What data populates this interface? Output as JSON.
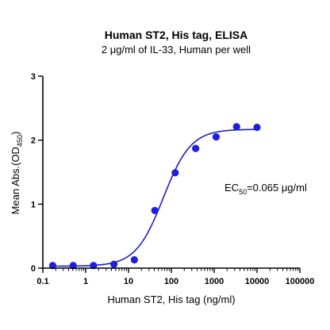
{
  "chart_data": {
    "type": "scatter",
    "title": "Human ST2, His tag, ELISA",
    "subtitle": "2 μg/ml of IL-33, Human per well",
    "xlabel": "Human ST2, His tag (ng/ml)",
    "ylabel_main": "Mean Abs.(OD",
    "ylabel_sub": "450",
    "ylabel_close": ")",
    "x_scale": "log",
    "xlim": [
      0.1,
      100000
    ],
    "ylim": [
      0,
      3
    ],
    "x_ticks": [
      "0.1",
      "1",
      "10",
      "100",
      "1000",
      "10000",
      "100000"
    ],
    "y_ticks": [
      "0",
      "1",
      "2",
      "3"
    ],
    "grid": false,
    "points": [
      {
        "x": 0.17,
        "y": 0.04
      },
      {
        "x": 0.51,
        "y": 0.04
      },
      {
        "x": 1.52,
        "y": 0.04
      },
      {
        "x": 4.57,
        "y": 0.06
      },
      {
        "x": 13.7,
        "y": 0.13
      },
      {
        "x": 41.2,
        "y": 0.9
      },
      {
        "x": 123,
        "y": 1.49
      },
      {
        "x": 370,
        "y": 1.87
      },
      {
        "x": 1111,
        "y": 2.05
      },
      {
        "x": 3333,
        "y": 2.21
      },
      {
        "x": 10000,
        "y": 2.2
      }
    ],
    "fit": {
      "model": "4PL",
      "bottom": 0.03,
      "top": 2.17,
      "ec50": 65,
      "hill": 1.35
    },
    "annotation": {
      "prefix": "EC",
      "sub": "50",
      "value": "=0.065 μg/ml"
    },
    "colors": {
      "points": "#1f1fe0",
      "curve": "#1f1fbf",
      "axes": "#000000"
    }
  }
}
